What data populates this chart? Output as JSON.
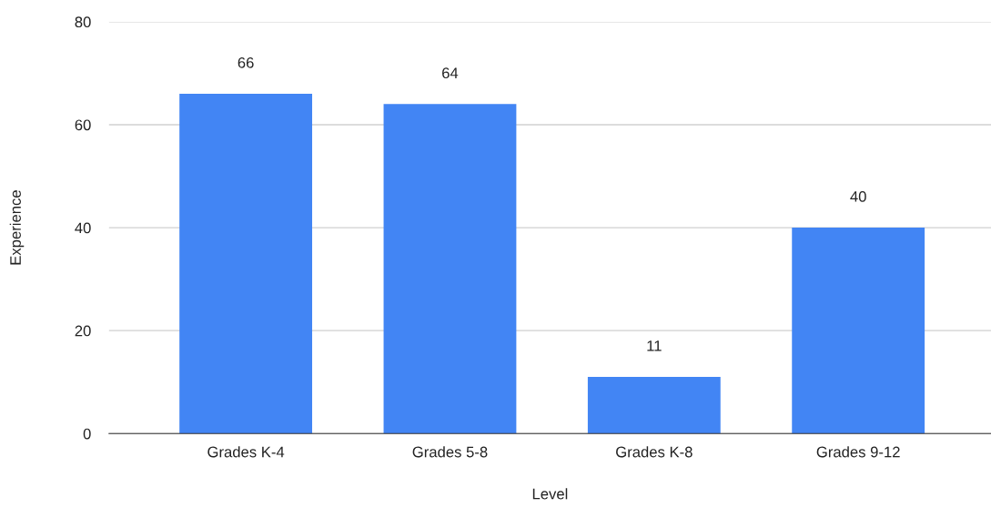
{
  "chart_data": {
    "type": "bar",
    "xlabel": "Level",
    "ylabel": "Experience",
    "categories": [
      "Grades K-4",
      "Grades 5-8",
      "Grades K-8",
      "Grades 9-12"
    ],
    "values": [
      66,
      64,
      11,
      40
    ],
    "color": "#4285f4",
    "ylim": [
      0,
      80
    ],
    "yticks": [
      0,
      20,
      40,
      60,
      80
    ],
    "grid": "y",
    "data_labels": true
  }
}
